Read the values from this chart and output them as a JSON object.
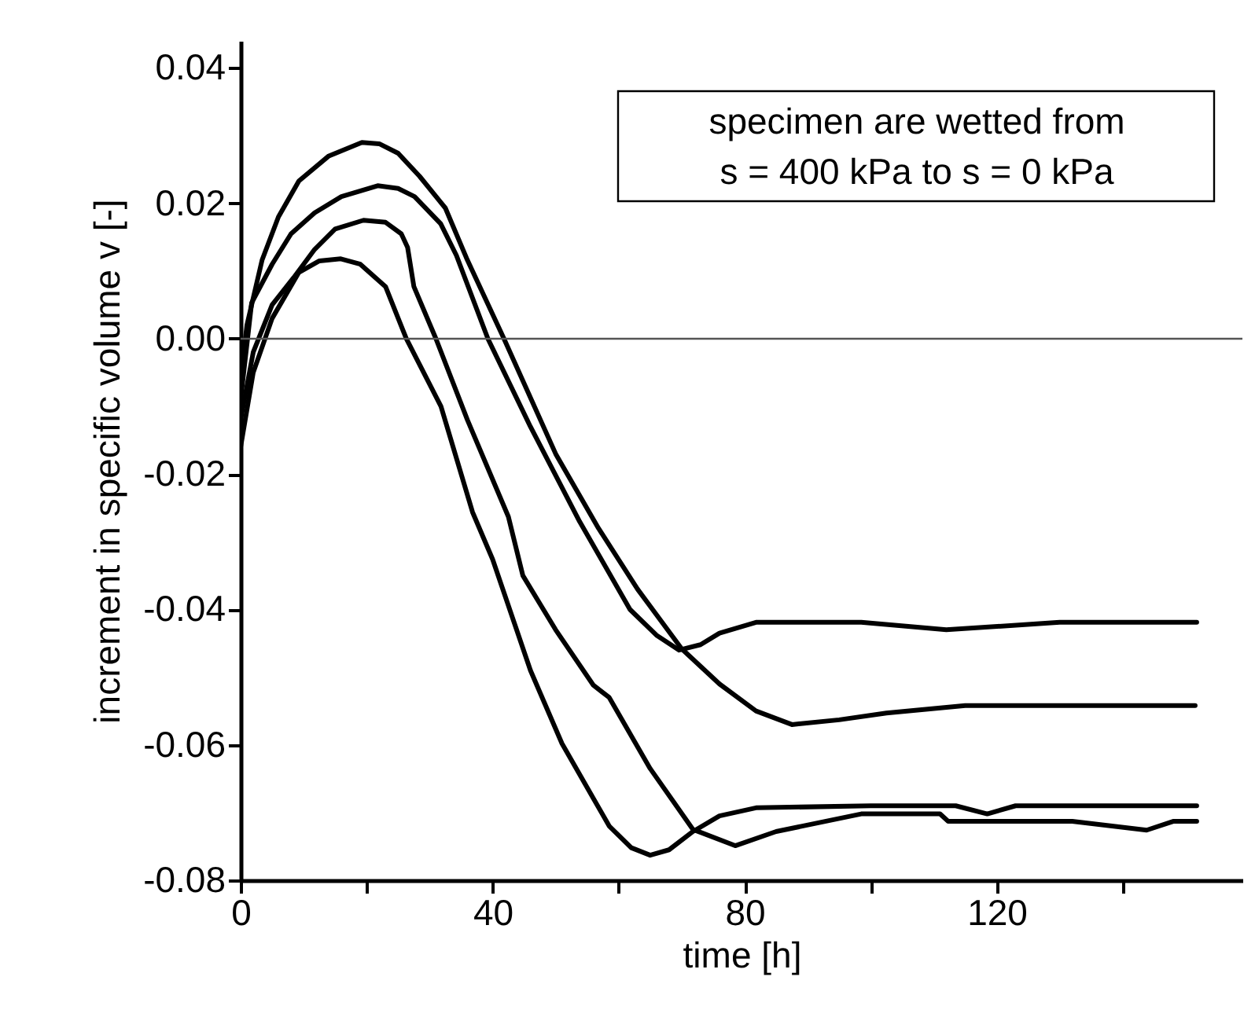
{
  "chart_data": {
    "type": "line",
    "xlabel": "time [h]",
    "ylabel": "increment in specific volume   v [-]",
    "annotations": [
      "specimen are wetted from",
      "s = 400 kPa to s = 0 kPa"
    ],
    "xlim": [
      0,
      159
    ],
    "ylim": [
      -0.08,
      0.044
    ],
    "xticks": [
      0,
      {
        "value": 20,
        "label": null
      },
      40,
      {
        "value": 60,
        "label": null
      },
      80,
      {
        "value": 100,
        "label": null
      },
      120,
      {
        "value": 140,
        "label": null
      }
    ],
    "yticks": [
      {
        "value": 0.04,
        "label": "0.04"
      },
      {
        "value": 0.02,
        "label": "0.02"
      },
      {
        "value": 0,
        "label": "0.00"
      },
      {
        "value": -0.02,
        "label": "-0.02"
      },
      {
        "value": -0.04,
        "label": "-0.04"
      },
      {
        "value": -0.06,
        "label": "-0.06"
      },
      {
        "value": -0.08,
        "label": "-0.08"
      }
    ],
    "grid": false,
    "legend": false,
    "marker": "none",
    "line_style": "solid",
    "ref_lines": [
      {
        "axis": "y",
        "value": 0,
        "color": "#555555"
      }
    ],
    "series": [
      {
        "color": "#000000",
        "x": [
          0,
          1,
          3.4,
          6,
          9.25,
          14,
          19.25,
          22,
          25,
          28.4,
          32.5,
          36,
          41.8,
          50,
          56.8,
          63,
          70,
          76,
          81.8,
          87.5,
          95,
          102.5,
          115,
          130,
          151.5
        ],
        "values": [
          -0.006,
          0.002,
          0.0116,
          0.018,
          0.0233,
          0.027,
          0.029,
          0.0288,
          0.0274,
          0.024,
          0.0193,
          0.0116,
          0,
          -0.017,
          -0.028,
          -0.037,
          -0.0458,
          -0.051,
          -0.055,
          -0.057,
          -0.0563,
          -0.0553,
          -0.0542,
          -0.0542,
          -0.0542
        ]
      },
      {
        "color": "#000000",
        "x": [
          0,
          1.75,
          5,
          8,
          11.75,
          16,
          21.75,
          25,
          27.6,
          31.75,
          34.25,
          39.25,
          46,
          53.8,
          61.8,
          66,
          69.6,
          73,
          76,
          81.8,
          90,
          98.5,
          112,
          130,
          151.75
        ],
        "values": [
          -0.009,
          0.0053,
          0.011,
          0.0155,
          0.0186,
          0.021,
          0.0226,
          0.0222,
          0.021,
          0.017,
          0.0123,
          0,
          -0.013,
          -0.027,
          -0.04,
          -0.0438,
          -0.046,
          -0.0452,
          -0.0435,
          -0.0419,
          -0.0419,
          -0.0419,
          -0.043,
          -0.0419,
          -0.0419
        ]
      },
      {
        "color": "#000000",
        "x": [
          0,
          2,
          5,
          8.4,
          11.75,
          15,
          19.5,
          23,
          25.5,
          26.5,
          27.5,
          31,
          36,
          42.5,
          44.8,
          50,
          56,
          58.5,
          65,
          71.8,
          78.5,
          85,
          98.5,
          111,
          112.3,
          132,
          143.8,
          148,
          151.75
        ],
        "values": [
          -0.012,
          -0.002,
          0.005,
          0.009,
          0.0132,
          0.0162,
          0.0175,
          0.0172,
          0.0155,
          0.0135,
          0.0077,
          0,
          -0.012,
          -0.0263,
          -0.035,
          -0.043,
          -0.0512,
          -0.053,
          -0.0635,
          -0.0725,
          -0.0749,
          -0.0728,
          -0.0702,
          -0.0702,
          -0.0713,
          -0.0713,
          -0.0726,
          -0.0713,
          -0.0713
        ]
      },
      {
        "color": "#000000",
        "x": [
          0,
          2,
          5,
          9.25,
          12.5,
          15.9,
          19,
          23,
          26.3,
          31.8,
          36.8,
          40,
          46,
          51,
          58.5,
          62,
          65,
          68,
          71.8,
          76,
          81.8,
          100,
          113.5,
          118.5,
          123,
          151.75
        ],
        "values": [
          -0.016,
          -0.005,
          0.003,
          0.0098,
          0.0115,
          0.0118,
          0.011,
          0.0077,
          0,
          -0.01,
          -0.0256,
          -0.0326,
          -0.049,
          -0.0598,
          -0.072,
          -0.0752,
          -0.0763,
          -0.0755,
          -0.0728,
          -0.0705,
          -0.0693,
          -0.069,
          -0.069,
          -0.0702,
          -0.069,
          -0.069
        ]
      }
    ]
  }
}
